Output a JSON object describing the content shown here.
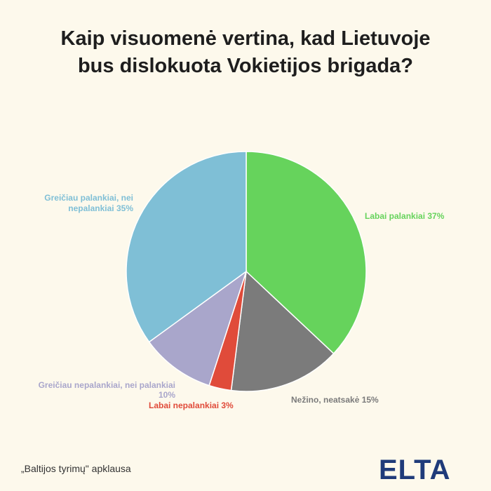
{
  "title": "Kaip visuomenė vertina, kad Lietuvoje bus dislokuota Vokietijos brigada?",
  "source": "„Baltijos tyrimų\" apklausa",
  "logo_text": "ELTA",
  "colors": {
    "background": "#fdf9ec",
    "logo": "#1f3b7a"
  },
  "chart_data": {
    "type": "pie",
    "title": "Kaip visuomenė vertina, kad Lietuvoje bus dislokuota Vokietijos brigada?",
    "slices": [
      {
        "label": "Labai palankiai 37%",
        "value": 37,
        "color": "#66d35c"
      },
      {
        "label": "Nežino, neatsakė 15%",
        "value": 15,
        "color": "#7b7b7b"
      },
      {
        "label": "Labai nepalankiai 3%",
        "value": 3,
        "color": "#e04b3a"
      },
      {
        "label": "Greičiau nepalankiai, nei palankiai 10%",
        "value": 10,
        "color": "#a9a6cb"
      },
      {
        "label": "Greičiau palankiai, nei nepalankiai 35%",
        "value": 35,
        "color": "#7fbfd6"
      }
    ],
    "start": "12 o'clock",
    "direction": "clockwise"
  }
}
